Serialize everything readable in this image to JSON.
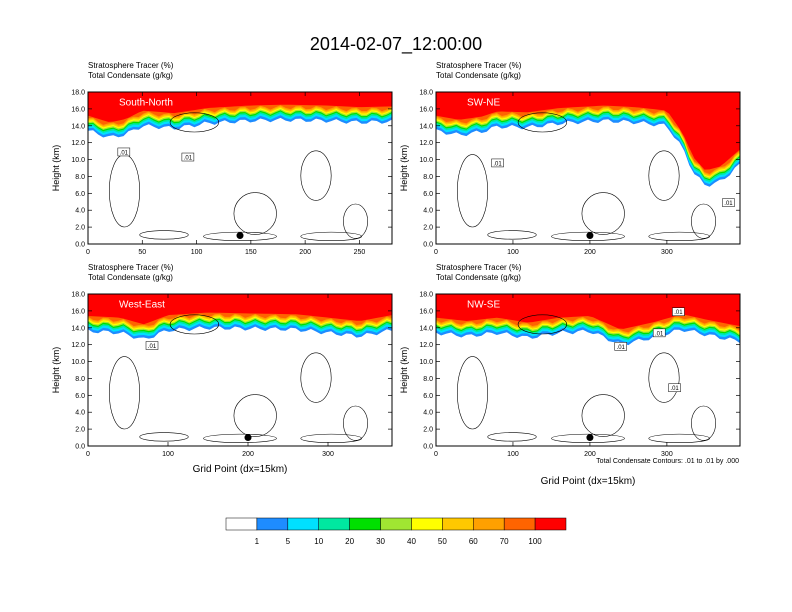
{
  "page_title": "2014-02-07_12:00:00",
  "contour_note": "Total Condensate Contours: .01 to .01 by .000",
  "contour_label_text": ".01",
  "colorbar": {
    "levels": [
      "1",
      "5",
      "10",
      "20",
      "30",
      "40",
      "50",
      "60",
      "70",
      "100"
    ],
    "colors": [
      "#ffffff",
      "#1e8cff",
      "#00e0ff",
      "#00e8a0",
      "#00e000",
      "#a0e632",
      "#ffff00",
      "#ffc800",
      "#ffa000",
      "#ff6400",
      "#ff0000"
    ]
  },
  "chart_data": [
    {
      "type": "heatmap",
      "label": "South-North",
      "titles": [
        "Stratosphere Tracer   (%)",
        "Total Condensate   (g/kg)"
      ],
      "ylabel": "Height (km)",
      "xlabel": "",
      "xlim": [
        0,
        280
      ],
      "ylim": [
        0,
        18
      ],
      "xticks": [
        "0",
        "50",
        "100",
        "150",
        "200",
        "250"
      ],
      "yticks": [
        "0.0",
        "2.0",
        "4.0",
        "6.0",
        "8.0",
        "10.0",
        "12.0",
        "14.0",
        "16.0",
        "18.0"
      ],
      "marker": {
        "x": 140,
        "y": 1.0
      },
      "contour_labels": [
        {
          "x": 33,
          "y": 10.9
        },
        {
          "x": 92,
          "y": 10.3
        }
      ],
      "tropopause_km": [
        [
          0,
          15.0
        ],
        [
          20,
          14.2
        ],
        [
          35,
          14.6
        ],
        [
          50,
          15.6
        ],
        [
          80,
          15.3
        ],
        [
          110,
          15.9
        ],
        [
          150,
          16.2
        ],
        [
          180,
          16.3
        ],
        [
          220,
          16.2
        ],
        [
          250,
          16.0
        ],
        [
          280,
          16.1
        ]
      ]
    },
    {
      "type": "heatmap",
      "label": "SW-NE",
      "titles": [
        "Stratosphere Tracer   (%)",
        "Total Condensate   (g/kg)"
      ],
      "ylabel": "Height (km)",
      "xlabel": "",
      "xlim": [
        0,
        395
      ],
      "ylim": [
        0,
        18
      ],
      "xticks": [
        "0",
        "100",
        "200",
        "300"
      ],
      "yticks": [
        "0.0",
        "2.0",
        "4.0",
        "6.0",
        "8.0",
        "10.0",
        "12.0",
        "14.0",
        "16.0",
        "18.0"
      ],
      "marker": {
        "x": 200,
        "y": 1.0
      },
      "contour_labels": [
        {
          "x": 80,
          "y": 9.6
        },
        {
          "x": 380,
          "y": 4.9
        }
      ],
      "tropopause_km": [
        [
          0,
          15.0
        ],
        [
          30,
          14.5
        ],
        [
          60,
          14.9
        ],
        [
          80,
          15.5
        ],
        [
          120,
          15.4
        ],
        [
          160,
          15.9
        ],
        [
          220,
          16.2
        ],
        [
          260,
          16.0
        ],
        [
          300,
          15.6
        ],
        [
          320,
          13.0
        ],
        [
          335,
          10.0
        ],
        [
          350,
          8.5
        ],
        [
          370,
          9.0
        ],
        [
          395,
          11.0
        ]
      ]
    },
    {
      "type": "heatmap",
      "label": "West-East",
      "titles": [
        "Stratosphere Tracer   (%)",
        "Total Condensate   (g/kg)"
      ],
      "ylabel": "Height (km)",
      "xlabel": "Grid Point (dx=15km)",
      "xlim": [
        0,
        380
      ],
      "ylim": [
        0,
        18
      ],
      "xticks": [
        "0",
        "100",
        "200",
        "300"
      ],
      "yticks": [
        "0.0",
        "2.0",
        "4.0",
        "6.0",
        "8.0",
        "10.0",
        "12.0",
        "14.0",
        "16.0",
        "18.0"
      ],
      "marker": {
        "x": 200,
        "y": 1.0
      },
      "contour_labels": [
        {
          "x": 80,
          "y": 11.9
        }
      ],
      "tropopause_km": [
        [
          0,
          15.2
        ],
        [
          40,
          15.0
        ],
        [
          70,
          14.2
        ],
        [
          100,
          15.3
        ],
        [
          150,
          15.6
        ],
        [
          200,
          15.5
        ],
        [
          260,
          15.4
        ],
        [
          300,
          15.0
        ],
        [
          340,
          14.6
        ],
        [
          380,
          15.3
        ]
      ]
    },
    {
      "type": "heatmap",
      "label": "NW-SE",
      "titles": [
        "Stratosphere Tracer   (%)",
        "Total Condensate   (g/kg)"
      ],
      "ylabel": "Height (km)",
      "xlabel": "Grid Point (dx=15km)",
      "xlim": [
        0,
        395
      ],
      "ylim": [
        0,
        18
      ],
      "xticks": [
        "0",
        "100",
        "200",
        "300"
      ],
      "yticks": [
        "0.0",
        "2.0",
        "4.0",
        "6.0",
        "8.0",
        "10.0",
        "12.0",
        "14.0",
        "16.0",
        "18.0"
      ],
      "marker": {
        "x": 200,
        "y": 1.0
      },
      "contour_labels": [
        {
          "x": 240,
          "y": 11.8
        },
        {
          "x": 290,
          "y": 13.4
        },
        {
          "x": 310,
          "y": 6.9
        },
        {
          "x": 315,
          "y": 15.9
        }
      ],
      "tropopause_km": [
        [
          0,
          15.0
        ],
        [
          40,
          14.6
        ],
        [
          80,
          15.0
        ],
        [
          120,
          14.4
        ],
        [
          160,
          15.0
        ],
        [
          200,
          15.2
        ],
        [
          240,
          13.6
        ],
        [
          280,
          14.4
        ],
        [
          320,
          15.4
        ],
        [
          360,
          14.6
        ],
        [
          395,
          14.0
        ]
      ]
    }
  ]
}
